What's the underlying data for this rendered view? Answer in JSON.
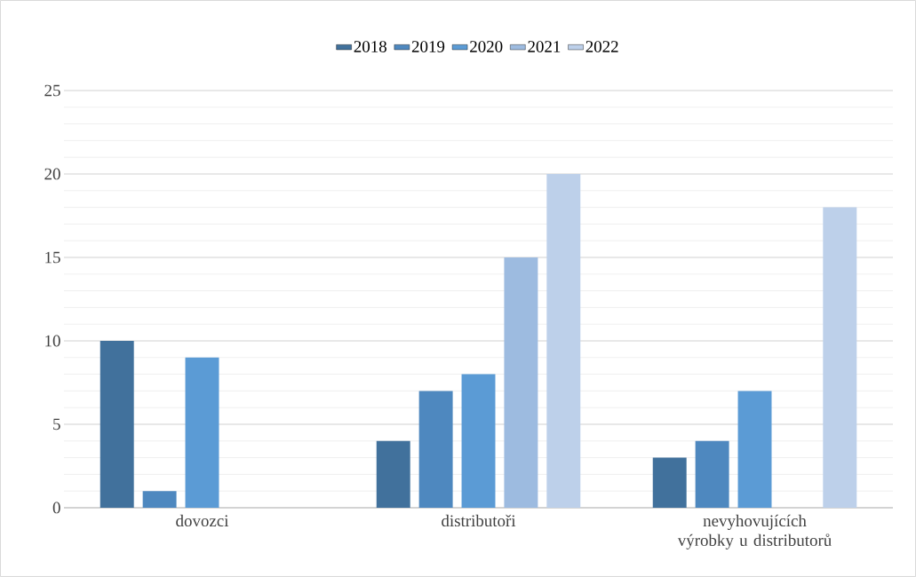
{
  "chart_data": {
    "type": "bar",
    "categories": [
      "dovozci",
      "distributoři",
      "nevyhovujících výrobky u distributorů"
    ],
    "series": [
      {
        "name": "2018",
        "color": "#41719c",
        "values": [
          10,
          4,
          3
        ]
      },
      {
        "name": "2019",
        "color": "#4e88bf",
        "values": [
          1,
          7,
          4
        ]
      },
      {
        "name": "2020",
        "color": "#5b9bd5",
        "values": [
          9,
          8,
          7
        ]
      },
      {
        "name": "2021",
        "color": "#9dbbe0",
        "values": [
          null,
          15,
          null
        ]
      },
      {
        "name": "2022",
        "color": "#bdd0ea",
        "values": [
          null,
          20,
          18
        ]
      }
    ],
    "ylim": [
      0,
      25
    ],
    "yticks": [
      0,
      5,
      10,
      15,
      20,
      25
    ],
    "grid": "y",
    "legend": "top"
  }
}
